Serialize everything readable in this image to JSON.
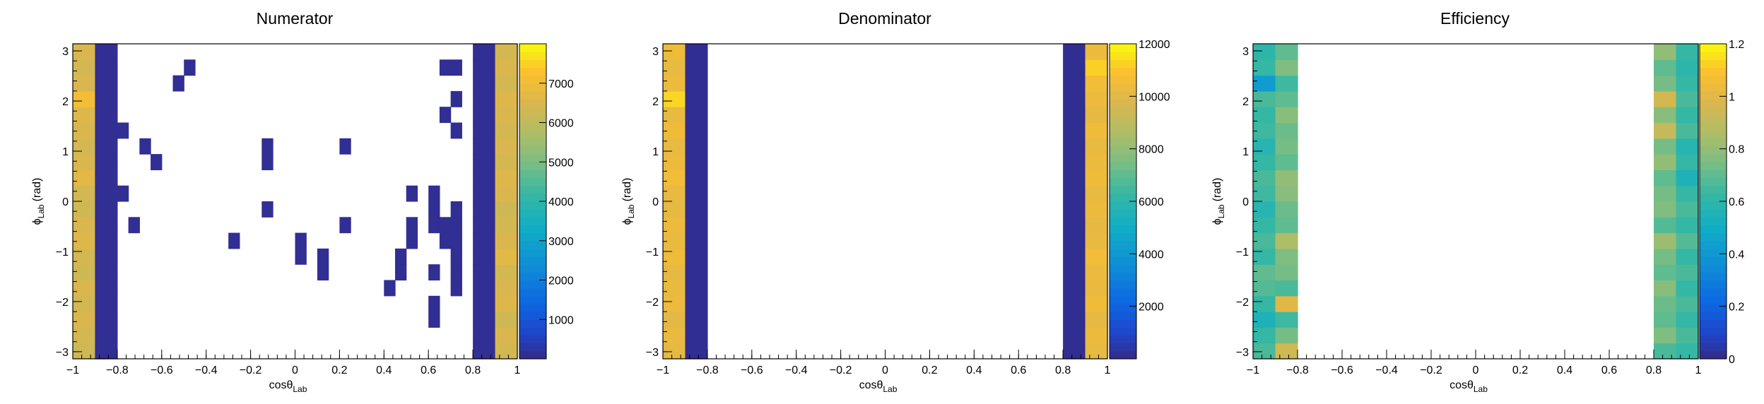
{
  "chart_data": [
    {
      "type": "heatmap",
      "title": "Numerator",
      "xlabel": "cosθ",
      "xlabel_sub": "Lab",
      "ylabel": "ϕ",
      "ylabel_sub": "Lab",
      "ylabel_unit": "(rad)",
      "xlim": [
        -1,
        1.0
      ],
      "ylim": [
        -3.1416,
        3.1416
      ],
      "x_ticks": [
        "−1",
        "−0.8",
        "−0.6",
        "−0.4",
        "−0.2",
        "0",
        "0.2",
        "0.4",
        "0.6",
        "0.8",
        "1"
      ],
      "y_ticks": [
        "−3",
        "−2",
        "−1",
        "0",
        "1",
        "2",
        "3"
      ],
      "zlim": [
        0,
        8000
      ],
      "z_ticks": [
        "1000",
        "2000",
        "3000",
        "4000",
        "5000",
        "6000",
        "7000"
      ],
      "x_bins": 20,
      "y_bins": 20,
      "column_values": {
        "0": [
          6300,
          6400,
          6500,
          6400,
          6500,
          6300,
          6400,
          6600,
          6500,
          6300,
          6400,
          6700,
          6500,
          6400,
          6500,
          6600,
          7100,
          6500,
          6400,
          6500
        ],
        "1": [
          120,
          120,
          120,
          120,
          120,
          120,
          120,
          120,
          120,
          120,
          120,
          120,
          120,
          120,
          120,
          120,
          120,
          120,
          120,
          120
        ],
        "18": [
          120,
          120,
          120,
          120,
          120,
          120,
          120,
          120,
          120,
          120,
          120,
          120,
          120,
          120,
          120,
          120,
          120,
          120,
          120,
          120
        ],
        "19": [
          6400,
          6500,
          6300,
          6600,
          6500,
          6400,
          6700,
          6500,
          6400,
          6300,
          6500,
          6600,
          6400,
          6500,
          6400,
          6500,
          6600,
          6400,
          6500,
          6400
        ]
      },
      "cell_values": [
        [
          2,
          0,
          120
        ],
        [
          2,
          5,
          120
        ],
        [
          2,
          6,
          120
        ],
        [
          2,
          7,
          120
        ],
        [
          2,
          8,
          120
        ],
        [
          2,
          9,
          120
        ],
        [
          2,
          10,
          120
        ],
        [
          2,
          11,
          120
        ],
        [
          2,
          16,
          120
        ],
        [
          3,
          5,
          120
        ],
        [
          3,
          6,
          120
        ],
        [
          3,
          7,
          120
        ],
        [
          3,
          10,
          120
        ],
        [
          4,
          10,
          120
        ],
        [
          4,
          14,
          120
        ],
        [
          5,
          8,
          120
        ],
        [
          6,
          13,
          120
        ],
        [
          7,
          12,
          120
        ],
        [
          9,
          17,
          120
        ],
        [
          10,
          18,
          120
        ],
        [
          14,
          7,
          120
        ],
        [
          17,
          9,
          120
        ],
        [
          17,
          12,
          120
        ],
        [
          17,
          13,
          120
        ],
        [
          20,
          6,
          120
        ],
        [
          20,
          7,
          120
        ],
        [
          22,
          5,
          120
        ],
        [
          22,
          6,
          120
        ],
        [
          24,
          8,
          120
        ],
        [
          24,
          13,
          120
        ],
        [
          28,
          4,
          120
        ],
        [
          29,
          5,
          120
        ],
        [
          29,
          6,
          120
        ],
        [
          30,
          7,
          120
        ],
        [
          30,
          8,
          120
        ],
        [
          30,
          10,
          120
        ],
        [
          32,
          2,
          120
        ],
        [
          32,
          3,
          120
        ],
        [
          32,
          5,
          120
        ],
        [
          32,
          8,
          120
        ],
        [
          32,
          9,
          120
        ],
        [
          32,
          10,
          120
        ],
        [
          33,
          7,
          120
        ],
        [
          33,
          8,
          120
        ],
        [
          33,
          15,
          120
        ],
        [
          33,
          18,
          120
        ],
        [
          34,
          4,
          120
        ],
        [
          34,
          5,
          120
        ],
        [
          34,
          6,
          120
        ],
        [
          34,
          7,
          120
        ],
        [
          34,
          8,
          120
        ],
        [
          34,
          9,
          120
        ],
        [
          34,
          14,
          120
        ],
        [
          34,
          16,
          120
        ],
        [
          34,
          18,
          120
        ]
      ]
    },
    {
      "type": "heatmap",
      "title": "Denominator",
      "xlabel": "cosθ",
      "xlabel_sub": "Lab",
      "ylabel": "ϕ",
      "ylabel_sub": "Lab",
      "ylabel_unit": "(rad)",
      "xlim": [
        -1,
        1.0
      ],
      "ylim": [
        -3.1416,
        3.1416
      ],
      "x_ticks": [
        "−1",
        "−0.8",
        "−0.6",
        "−0.4",
        "−0.2",
        "0",
        "0.2",
        "0.4",
        "0.6",
        "0.8",
        "1"
      ],
      "y_ticks": [
        "−3",
        "−2",
        "−1",
        "0",
        "1",
        "2",
        "3"
      ],
      "zlim": [
        0,
        12000
      ],
      "z_ticks": [
        "2000",
        "4000",
        "6000",
        "8000",
        "10000",
        "12000"
      ],
      "x_bins": 20,
      "y_bins": 20,
      "column_values": {
        "0": [
          10200,
          10300,
          10100,
          10400,
          10300,
          10200,
          10500,
          10300,
          10400,
          10200,
          10300,
          10600,
          10400,
          10300,
          10500,
          10300,
          11300,
          10400,
          10300,
          10500
        ],
        "1": [
          150,
          150,
          150,
          150,
          150,
          150,
          150,
          150,
          150,
          150,
          150,
          150,
          150,
          150,
          150,
          150,
          150,
          150,
          150,
          150
        ],
        "18": [
          150,
          150,
          150,
          150,
          150,
          150,
          150,
          150,
          150,
          150,
          150,
          150,
          150,
          150,
          150,
          150,
          150,
          150,
          150,
          150
        ],
        "19": [
          10300,
          10400,
          10200,
          10500,
          10300,
          10400,
          10600,
          10300,
          10200,
          10400,
          10300,
          10500,
          10400,
          10300,
          10500,
          10200,
          10400,
          10600,
          11200,
          10400
        ]
      }
    },
    {
      "type": "heatmap",
      "title": "Efficiency",
      "xlabel": "cosθ",
      "xlabel_sub": "Lab",
      "ylabel": "ϕ",
      "ylabel_sub": "Lab",
      "ylabel_unit": "(rad)",
      "xlim": [
        -1,
        1.0
      ],
      "ylim": [
        -3.1416,
        3.1416
      ],
      "x_ticks": [
        "−1",
        "−0.8",
        "−0.6",
        "−0.4",
        "−0.2",
        "0",
        "0.2",
        "0.4",
        "0.6",
        "0.8",
        "1"
      ],
      "y_ticks": [
        "−3",
        "−2",
        "−1",
        "0",
        "1",
        "2",
        "3"
      ],
      "zlim": [
        0,
        1.2
      ],
      "z_ticks": [
        "0",
        "0.2",
        "0.4",
        "0.6",
        "0.8",
        "1",
        "1.2"
      ],
      "x_bins": 20,
      "y_bins": 20,
      "column_values": {
        "0": [
          0.66,
          0.62,
          0.55,
          0.62,
          0.68,
          0.7,
          0.62,
          0.66,
          0.62,
          0.58,
          0.64,
          0.66,
          0.62,
          0.58,
          0.64,
          0.62,
          0.66,
          0.42,
          0.62,
          0.6
        ],
        "1": [
          0.95,
          0.74,
          0.64,
          1.0,
          0.66,
          0.74,
          0.76,
          0.86,
          0.7,
          0.72,
          0.78,
          0.8,
          0.7,
          0.74,
          0.72,
          0.78,
          0.7,
          0.64,
          0.76,
          0.7
        ],
        "18": [
          0.66,
          0.76,
          0.7,
          0.72,
          0.78,
          0.7,
          0.74,
          0.82,
          0.68,
          0.76,
          0.74,
          0.7,
          0.8,
          0.74,
          0.92,
          0.78,
          0.96,
          0.74,
          0.7,
          0.8
        ],
        "19": [
          0.62,
          0.66,
          0.62,
          0.66,
          0.62,
          0.66,
          0.62,
          0.68,
          0.62,
          0.66,
          0.62,
          0.55,
          0.62,
          0.58,
          0.66,
          0.62,
          0.66,
          0.62,
          0.6,
          0.62
        ]
      }
    }
  ]
}
